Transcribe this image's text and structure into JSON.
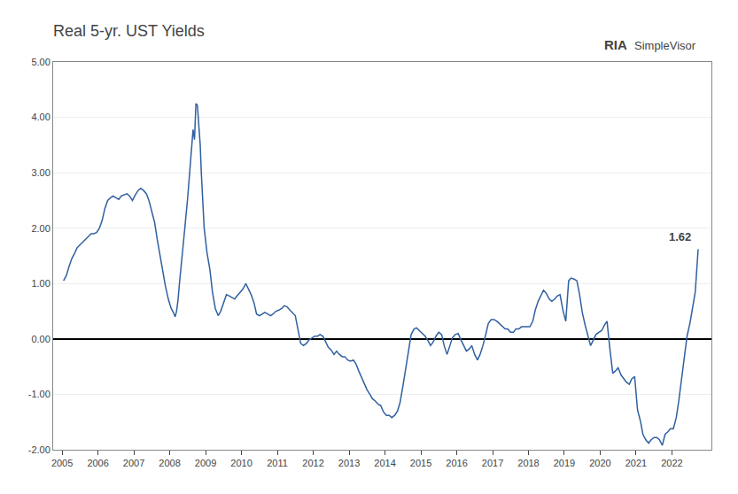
{
  "chart_data": {
    "type": "line",
    "title": "Real 5-yr. UST Yields",
    "color": "#3060A0",
    "grid": true,
    "xlim": [
      2004.75,
      2023.1
    ],
    "xticks": [
      2005,
      2006,
      2007,
      2008,
      2009,
      2010,
      2011,
      2012,
      2013,
      2014,
      2015,
      2016,
      2017,
      2018,
      2019,
      2020,
      2021,
      2022
    ],
    "ylim": [
      -2.0,
      5.0
    ],
    "yticks": [
      {
        "value": -2.0,
        "label": "-2.00"
      },
      {
        "value": -1.0,
        "label": "-1.00"
      },
      {
        "value": 0.0,
        "label": "0.00"
      },
      {
        "value": 1.0,
        "label": "1.00"
      },
      {
        "value": 2.0,
        "label": "2.00"
      },
      {
        "value": 3.0,
        "label": "3.00"
      },
      {
        "value": 4.0,
        "label": "4.00"
      },
      {
        "value": 5.0,
        "label": "5.00"
      }
    ],
    "annotations": [
      {
        "text": "1.62",
        "x": 2022.73,
        "y": 1.62
      },
      {
        "text": "RIA"
      },
      {
        "text": "SimpleVisor"
      }
    ],
    "x": [
      2005.04,
      2005.12,
      2005.19,
      2005.27,
      2005.35,
      2005.42,
      2005.5,
      2005.58,
      2005.65,
      2005.73,
      2005.81,
      2005.88,
      2005.96,
      2006.04,
      2006.12,
      2006.19,
      2006.27,
      2006.35,
      2006.42,
      2006.5,
      2006.58,
      2006.65,
      2006.73,
      2006.81,
      2006.88,
      2006.96,
      2007.04,
      2007.12,
      2007.19,
      2007.27,
      2007.35,
      2007.42,
      2007.5,
      2007.58,
      2007.65,
      2007.73,
      2007.81,
      2007.88,
      2007.96,
      2008.04,
      2008.1,
      2008.15,
      2008.19,
      2008.23,
      2008.27,
      2008.31,
      2008.35,
      2008.42,
      2008.5,
      2008.54,
      2008.58,
      2008.62,
      2008.65,
      2008.69,
      2008.73,
      2008.77,
      2008.81,
      2008.85,
      2008.88,
      2008.92,
      2008.96,
      2009.04,
      2009.12,
      2009.19,
      2009.27,
      2009.35,
      2009.42,
      2009.5,
      2009.58,
      2009.65,
      2009.73,
      2009.81,
      2009.88,
      2009.96,
      2010.04,
      2010.12,
      2010.19,
      2010.27,
      2010.35,
      2010.42,
      2010.5,
      2010.58,
      2010.65,
      2010.73,
      2010.81,
      2010.88,
      2010.96,
      2011.04,
      2011.12,
      2011.19,
      2011.27,
      2011.35,
      2011.42,
      2011.5,
      2011.58,
      2011.65,
      2011.73,
      2011.81,
      2011.88,
      2011.96,
      2012.04,
      2012.12,
      2012.19,
      2012.27,
      2012.35,
      2012.42,
      2012.5,
      2012.58,
      2012.65,
      2012.73,
      2012.81,
      2012.88,
      2012.96,
      2013.04,
      2013.12,
      2013.19,
      2013.27,
      2013.35,
      2013.42,
      2013.5,
      2013.58,
      2013.65,
      2013.73,
      2013.81,
      2013.88,
      2013.96,
      2014.04,
      2014.12,
      2014.19,
      2014.27,
      2014.35,
      2014.42,
      2014.5,
      2014.58,
      2014.65,
      2014.73,
      2014.81,
      2014.88,
      2014.96,
      2015.04,
      2015.12,
      2015.19,
      2015.27,
      2015.35,
      2015.42,
      2015.5,
      2015.58,
      2015.65,
      2015.73,
      2015.81,
      2015.88,
      2015.96,
      2016.04,
      2016.12,
      2016.19,
      2016.27,
      2016.35,
      2016.42,
      2016.5,
      2016.58,
      2016.65,
      2016.73,
      2016.81,
      2016.88,
      2016.96,
      2017.04,
      2017.12,
      2017.19,
      2017.27,
      2017.35,
      2017.42,
      2017.5,
      2017.58,
      2017.65,
      2017.73,
      2017.81,
      2017.88,
      2017.96,
      2018.04,
      2018.12,
      2018.19,
      2018.27,
      2018.35,
      2018.42,
      2018.5,
      2018.58,
      2018.65,
      2018.73,
      2018.81,
      2018.88,
      2018.96,
      2019.04,
      2019.12,
      2019.19,
      2019.27,
      2019.35,
      2019.42,
      2019.5,
      2019.58,
      2019.65,
      2019.73,
      2019.81,
      2019.88,
      2019.96,
      2020.04,
      2020.12,
      2020.19,
      2020.27,
      2020.35,
      2020.42,
      2020.5,
      2020.58,
      2020.65,
      2020.73,
      2020.81,
      2020.88,
      2020.96,
      2021.04,
      2021.12,
      2021.19,
      2021.27,
      2021.35,
      2021.42,
      2021.5,
      2021.58,
      2021.65,
      2021.73,
      2021.81,
      2021.88,
      2021.96,
      2022.04,
      2022.12,
      2022.19,
      2022.27,
      2022.35,
      2022.42,
      2022.5,
      2022.58,
      2022.65,
      2022.73
    ],
    "values": [
      1.05,
      1.15,
      1.3,
      1.45,
      1.55,
      1.65,
      1.7,
      1.75,
      1.8,
      1.85,
      1.9,
      1.9,
      1.92,
      2.0,
      2.15,
      2.35,
      2.5,
      2.55,
      2.58,
      2.55,
      2.52,
      2.58,
      2.6,
      2.62,
      2.58,
      2.5,
      2.6,
      2.68,
      2.72,
      2.68,
      2.62,
      2.5,
      2.3,
      2.1,
      1.8,
      1.5,
      1.2,
      0.95,
      0.72,
      0.55,
      0.48,
      0.4,
      0.5,
      0.7,
      1.0,
      1.3,
      1.6,
      2.0,
      2.55,
      2.9,
      3.3,
      3.65,
      3.78,
      3.6,
      4.25,
      4.22,
      3.9,
      3.5,
      3.0,
      2.5,
      2.0,
      1.55,
      1.25,
      0.85,
      0.55,
      0.42,
      0.5,
      0.65,
      0.8,
      0.78,
      0.75,
      0.72,
      0.78,
      0.85,
      0.9,
      1.0,
      0.9,
      0.8,
      0.65,
      0.45,
      0.42,
      0.45,
      0.48,
      0.45,
      0.42,
      0.45,
      0.5,
      0.52,
      0.55,
      0.6,
      0.58,
      0.52,
      0.48,
      0.42,
      0.15,
      -0.08,
      -0.12,
      -0.08,
      -0.02,
      0.02,
      0.05,
      0.05,
      0.08,
      0.05,
      -0.05,
      -0.15,
      -0.2,
      -0.28,
      -0.22,
      -0.28,
      -0.32,
      -0.32,
      -0.38,
      -0.4,
      -0.38,
      -0.45,
      -0.58,
      -0.7,
      -0.8,
      -0.92,
      -1.0,
      -1.08,
      -1.12,
      -1.18,
      -1.2,
      -1.32,
      -1.38,
      -1.38,
      -1.42,
      -1.38,
      -1.3,
      -1.15,
      -0.85,
      -0.55,
      -0.22,
      0.08,
      0.18,
      0.2,
      0.15,
      0.1,
      0.05,
      -0.02,
      -0.12,
      -0.05,
      0.05,
      0.12,
      0.08,
      -0.12,
      -0.28,
      -0.12,
      0.02,
      0.08,
      0.1,
      -0.02,
      -0.12,
      -0.22,
      -0.18,
      -0.12,
      -0.28,
      -0.38,
      -0.28,
      -0.12,
      0.08,
      0.28,
      0.35,
      0.35,
      0.32,
      0.28,
      0.22,
      0.18,
      0.18,
      0.12,
      0.12,
      0.18,
      0.18,
      0.22,
      0.22,
      0.22,
      0.22,
      0.32,
      0.52,
      0.68,
      0.78,
      0.88,
      0.82,
      0.72,
      0.68,
      0.72,
      0.78,
      0.8,
      0.52,
      0.32,
      1.05,
      1.1,
      1.08,
      1.05,
      0.82,
      0.48,
      0.25,
      0.08,
      -0.12,
      -0.02,
      0.08,
      0.12,
      0.15,
      0.25,
      0.32,
      -0.18,
      -0.62,
      -0.58,
      -0.52,
      -0.65,
      -0.72,
      -0.78,
      -0.82,
      -0.72,
      -0.68,
      -1.28,
      -1.48,
      -1.72,
      -1.82,
      -1.88,
      -1.82,
      -1.78,
      -1.78,
      -1.82,
      -1.92,
      -1.72,
      -1.68,
      -1.62,
      -1.62,
      -1.42,
      -1.12,
      -0.72,
      -0.32,
      0.05,
      0.28,
      0.55,
      0.85,
      1.62
    ]
  }
}
